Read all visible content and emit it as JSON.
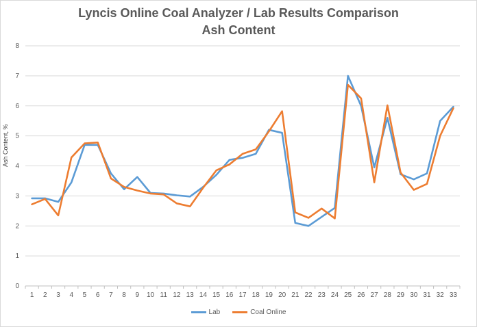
{
  "chart_data": {
    "type": "line",
    "title": "Lyncis Online Coal Analyzer / Lab Results Comparison",
    "subtitle": "Ash Content",
    "xlabel": "",
    "ylabel": "Ash Content, %",
    "ylim": [
      0,
      8
    ],
    "yticks": [
      "0",
      "1",
      "2",
      "3",
      "4",
      "5",
      "6",
      "7",
      "8"
    ],
    "grid": true,
    "legend_position": "bottom",
    "x": [
      "1",
      "2",
      "3",
      "4",
      "5",
      "6",
      "7",
      "8",
      "9",
      "10",
      "11",
      "12",
      "13",
      "14",
      "15",
      "16",
      "17",
      "18",
      "19",
      "20",
      "21",
      "22",
      "23",
      "24",
      "25",
      "26",
      "27",
      "28",
      "29",
      "30",
      "31",
      "32",
      "33"
    ],
    "series": [
      {
        "name": "Lab",
        "color": "#5b9bd5",
        "values": [
          2.92,
          2.92,
          2.8,
          3.45,
          4.7,
          4.7,
          3.75,
          3.22,
          3.63,
          3.1,
          3.08,
          3.02,
          2.98,
          3.3,
          3.7,
          4.2,
          4.27,
          4.4,
          5.2,
          5.1,
          2.1,
          2.0,
          2.3,
          2.6,
          7.0,
          6.0,
          3.95,
          5.6,
          3.72,
          3.55,
          3.75,
          5.5,
          5.97
        ]
      },
      {
        "name": "Coal Online",
        "color": "#ed7d31",
        "values": [
          2.72,
          2.9,
          2.35,
          4.28,
          4.75,
          4.78,
          3.58,
          3.3,
          3.18,
          3.08,
          3.05,
          2.75,
          2.65,
          3.27,
          3.85,
          4.05,
          4.4,
          4.55,
          5.15,
          5.82,
          2.45,
          2.27,
          2.58,
          2.25,
          6.7,
          6.25,
          3.45,
          6.02,
          3.78,
          3.2,
          3.4,
          5.0,
          5.92
        ]
      }
    ]
  }
}
